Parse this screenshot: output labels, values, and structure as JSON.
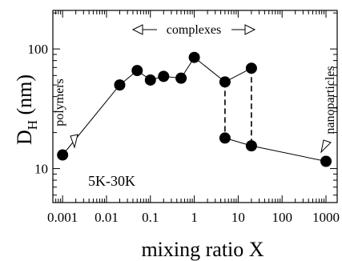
{
  "chart_data": {
    "type": "scatter",
    "xlabel": "mixing ratio X",
    "ylabel": {
      "main": "D",
      "sub": "H",
      "unit": " (nm)"
    },
    "x_scale": "log",
    "y_scale": "log",
    "xlim": [
      0.0006,
      1800
    ],
    "ylim": [
      5.2,
      210
    ],
    "x_ticks": [
      0.001,
      0.01,
      0.1,
      1,
      10,
      100,
      1000
    ],
    "x_tick_labels": [
      "0.001",
      "0.01",
      "0.1",
      "1",
      "10",
      "100",
      "1000"
    ],
    "y_ticks": [
      10,
      100
    ],
    "y_tick_labels": [
      "10",
      "100"
    ],
    "sample_label": "5K-30K",
    "series": [
      {
        "values": [
          {
            "x": 0.001,
            "y": 13
          },
          {
            "x": 0.02,
            "y": 50
          },
          {
            "x": 0.05,
            "y": 66
          },
          {
            "x": 0.1,
            "y": 55
          },
          {
            "x": 0.2,
            "y": 59
          },
          {
            "x": 0.5,
            "y": 57
          },
          {
            "x": 1,
            "y": 85
          },
          {
            "x": 5,
            "y": 53
          },
          {
            "x": 20,
            "y": 69
          },
          {
            "x": 5,
            "y": 18
          },
          {
            "x": 20,
            "y": 15.5
          },
          {
            "x": 1000,
            "y": 11.5
          }
        ]
      }
    ],
    "connecting_line_upper": [
      [
        0.001,
        13
      ],
      [
        0.02,
        50
      ],
      [
        0.05,
        66
      ],
      [
        0.1,
        55
      ],
      [
        0.2,
        59
      ],
      [
        0.5,
        57
      ],
      [
        1,
        85
      ],
      [
        5,
        53
      ],
      [
        20,
        69
      ]
    ],
    "connecting_line_lower": [
      [
        5,
        18
      ],
      [
        20,
        15.5
      ],
      [
        1000,
        11.5
      ]
    ],
    "dashed_links": [
      [
        [
          5,
          53
        ],
        [
          5,
          18
        ]
      ],
      [
        [
          20,
          69
        ],
        [
          20,
          15.5
        ]
      ]
    ],
    "annotations": {
      "complexes": "complexes",
      "polymers": "polymers",
      "nanoparticles": "nanoparticles"
    }
  }
}
